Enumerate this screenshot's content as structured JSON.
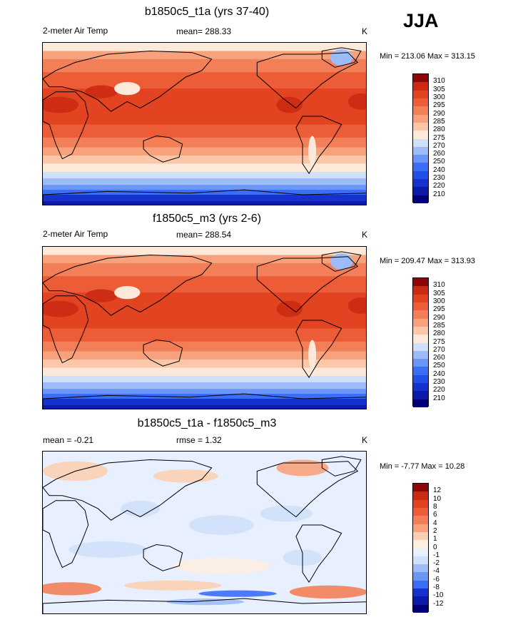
{
  "season": "JJA",
  "colors": {
    "temp_palette": [
      "#00007a",
      "#0b1ba8",
      "#1532cf",
      "#2050e6",
      "#3a6ef5",
      "#6b96f7",
      "#9dbbf7",
      "#cfe0fb",
      "#fde9da",
      "#fbc7a8",
      "#f7a27c",
      "#f27f58",
      "#ec5c36",
      "#e24422",
      "#cc2a12",
      "#8c0707"
    ],
    "diff_palette": [
      "#00007a",
      "#0b1ba8",
      "#1532cf",
      "#3a6ef5",
      "#6b96f7",
      "#9dbbf7",
      "#cfe0fb",
      "#e8efff",
      "#fdeee2",
      "#fbcfb3",
      "#f7a27c",
      "#f27f58",
      "#ec5c36",
      "#e24422",
      "#cc2a12",
      "#8c0707"
    ]
  },
  "panels": [
    {
      "title": "b1850c5_t1a (yrs 37-40)",
      "left_label": "2-meter Air Temp",
      "center_label": "mean= 288.33",
      "units": "K",
      "minmax": "Min = 213.06 Max = 313.15",
      "levels": [
        "310",
        "305",
        "300",
        "295",
        "290",
        "285",
        "280",
        "275",
        "270",
        "260",
        "250",
        "240",
        "230",
        "220",
        "210"
      ]
    },
    {
      "title": "f1850c5_m3 (yrs 2-6)",
      "left_label": "2-meter Air Temp",
      "center_label": "mean= 288.54",
      "units": "K",
      "minmax": "Min = 209.47 Max = 313.93",
      "levels": [
        "310",
        "305",
        "300",
        "295",
        "290",
        "285",
        "280",
        "275",
        "270",
        "260",
        "250",
        "240",
        "230",
        "220",
        "210"
      ]
    },
    {
      "title": "b1850c5_t1a - f1850c5_m3",
      "left_label": "mean =  -0.21",
      "center_label": "rmse =   1.32",
      "units": "K",
      "minmax": "Min =  -7.77 Max =  10.28",
      "levels": [
        "12",
        "10",
        "8",
        "6",
        "4",
        "2",
        "1",
        "0",
        "-1",
        "-2",
        "-4",
        "-6",
        "-8",
        "-10",
        "-12"
      ]
    }
  ],
  "chart_data": [
    {
      "type": "heatmap",
      "title": "b1850c5_t1a (yrs 37-40)",
      "variable": "2-meter Air Temp",
      "units": "K",
      "mean": 288.33,
      "min": 213.06,
      "max": 313.15,
      "contour_levels": [
        210,
        220,
        230,
        240,
        250,
        260,
        270,
        275,
        280,
        285,
        290,
        295,
        300,
        305,
        310
      ]
    },
    {
      "type": "heatmap",
      "title": "f1850c5_m3 (yrs 2-6)",
      "variable": "2-meter Air Temp",
      "units": "K",
      "mean": 288.54,
      "min": 209.47,
      "max": 313.93,
      "contour_levels": [
        210,
        220,
        230,
        240,
        250,
        260,
        270,
        275,
        280,
        285,
        290,
        295,
        300,
        305,
        310
      ]
    },
    {
      "type": "heatmap",
      "title": "b1850c5_t1a - f1850c5_m3",
      "units": "K",
      "mean": -0.21,
      "rmse": 1.32,
      "min": -7.77,
      "max": 10.28,
      "contour_levels": [
        -12,
        -10,
        -8,
        -6,
        -4,
        -2,
        -1,
        0,
        1,
        2,
        4,
        6,
        8,
        10,
        12
      ]
    }
  ]
}
